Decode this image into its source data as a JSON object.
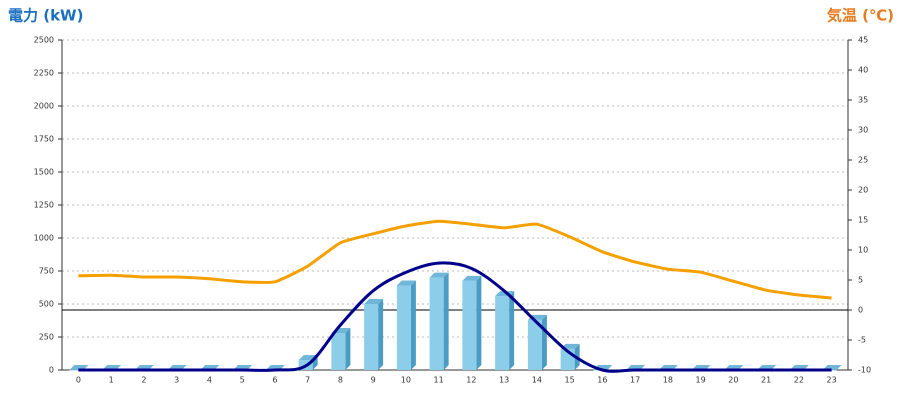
{
  "chart_data": {
    "type": "bar",
    "title_left": "電力 (kW)",
    "title_right": "気温 (℃)",
    "categories": [
      "0",
      "1",
      "2",
      "3",
      "4",
      "5",
      "6",
      "7",
      "8",
      "9",
      "10",
      "11",
      "12",
      "13",
      "14",
      "15",
      "16",
      "17",
      "18",
      "19",
      "20",
      "21",
      "22",
      "23"
    ],
    "series": [
      {
        "type": "bar",
        "color": "#8ccde9",
        "values": [
          0,
          0,
          0,
          0,
          0,
          0,
          0,
          75,
          280,
          500,
          640,
          700,
          675,
          560,
          380,
          160,
          0,
          0,
          0,
          0,
          0,
          0,
          0,
          0
        ]
      },
      {
        "type": "line",
        "color": "#00008b",
        "values": [
          0,
          0,
          0,
          0,
          0,
          0,
          0,
          40,
          340,
          600,
          740,
          810,
          770,
          600,
          360,
          130,
          0,
          0,
          0,
          0,
          0,
          0,
          0,
          0
        ]
      },
      {
        "type": "line",
        "color": "#f5a000",
        "axis": "y2",
        "values": [
          5.7,
          5.8,
          5.5,
          5.5,
          5.2,
          4.7,
          4.7,
          7.3,
          11.2,
          12.7,
          14,
          14.8,
          14.3,
          13.7,
          14.3,
          12.2,
          9.7,
          8,
          6.8,
          6.3,
          4.8,
          3.3,
          2.5,
          2
        ]
      }
    ],
    "ylim": [
      0,
      2500
    ],
    "yticks": [
      0,
      250,
      500,
      750,
      1000,
      1250,
      1500,
      1750,
      2000,
      2250,
      2500
    ],
    "y2lim": [
      -10,
      45
    ],
    "y2ticks": [
      -10,
      -5,
      0,
      5,
      10,
      15,
      20,
      25,
      30,
      35,
      40,
      45
    ],
    "grid": true
  }
}
